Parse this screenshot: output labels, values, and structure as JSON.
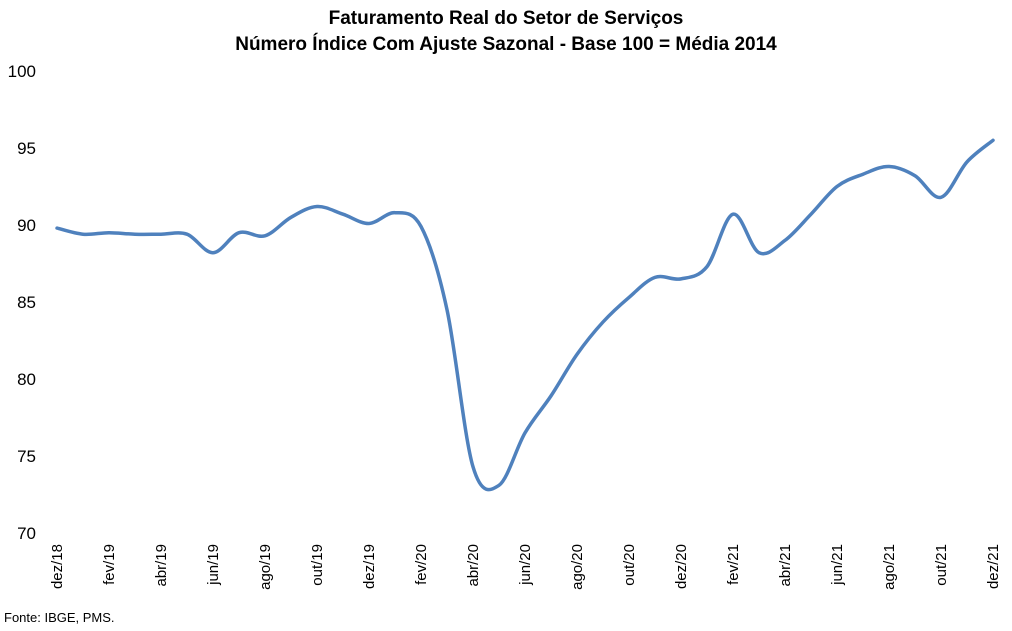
{
  "chart_data": {
    "type": "line",
    "title": "Faturamento Real do Setor de Serviços",
    "subtitle": "Número Índice Com Ajuste Sazonal - Base 100 = Média 2014",
    "xlabel": "",
    "ylabel": "",
    "ylim": [
      70,
      100
    ],
    "yticks": [
      70,
      75,
      80,
      85,
      90,
      95,
      100
    ],
    "grid": false,
    "legend": "none",
    "line_color": "#4F81BD",
    "x": [
      "dez/18",
      "jan/19",
      "fev/19",
      "mar/19",
      "abr/19",
      "mai/19",
      "jun/19",
      "jul/19",
      "ago/19",
      "set/19",
      "out/19",
      "nov/19",
      "dez/19",
      "jan/20",
      "fev/20",
      "mar/20",
      "abr/20",
      "mai/20",
      "jun/20",
      "jul/20",
      "ago/20",
      "set/20",
      "out/20",
      "nov/20",
      "dez/20",
      "jan/21",
      "fev/21",
      "mar/21",
      "abr/21",
      "mai/21",
      "jun/21",
      "jul/21",
      "ago/21",
      "set/21",
      "out/21",
      "nov/21",
      "dez/21"
    ],
    "x_tick_labels": [
      "dez/18",
      "fev/19",
      "abr/19",
      "jun/19",
      "ago/19",
      "out/19",
      "dez/19",
      "fev/20",
      "abr/20",
      "jun/20",
      "ago/20",
      "out/20",
      "dez/20",
      "fev/21",
      "abr/21",
      "jun/21",
      "ago/21",
      "out/21",
      "dez/21"
    ],
    "series": [
      {
        "values": [
          89.8,
          89.4,
          89.5,
          89.4,
          89.4,
          89.4,
          88.2,
          89.5,
          89.3,
          90.5,
          91.2,
          90.7,
          90.1,
          90.8,
          89.9,
          84.5,
          74.3,
          73.1,
          76.5,
          78.9,
          81.6,
          83.7,
          85.3,
          86.6,
          86.5,
          87.3,
          90.7,
          88.2,
          89.0,
          90.7,
          92.5,
          93.3,
          93.8,
          93.2,
          91.8,
          94.1,
          95.5
        ]
      }
    ]
  },
  "source_note": "Fonte: IBGE, PMS."
}
